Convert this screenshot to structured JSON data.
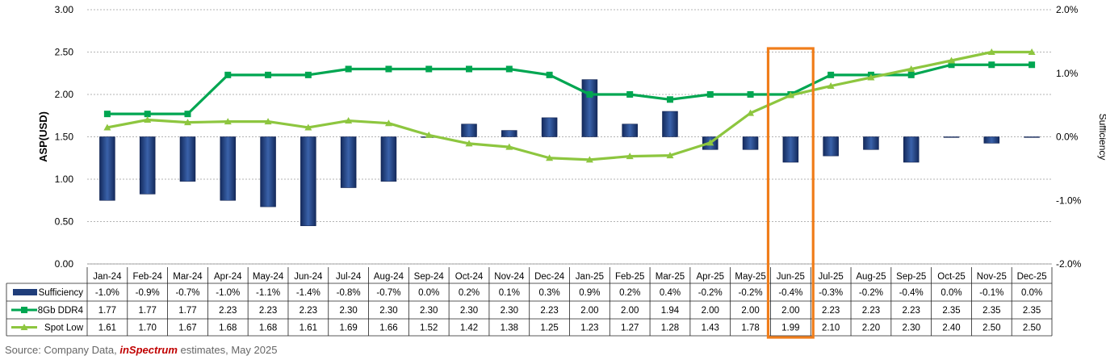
{
  "chart_data": {
    "type": "bar+line",
    "categories": [
      "Jan-24",
      "Feb-24",
      "Mar-24",
      "Apr-24",
      "May-24",
      "Jun-24",
      "Jul-24",
      "Aug-24",
      "Sep-24",
      "Oct-24",
      "Nov-24",
      "Dec-24",
      "Jan-25",
      "Feb-25",
      "Mar-25",
      "Apr-25",
      "May-25",
      "Jun-25",
      "Jul-25",
      "Aug-25",
      "Sep-25",
      "Oct-25",
      "Nov-25",
      "Dec-25"
    ],
    "ylabel": "ASP(USD)",
    "ylim": [
      0,
      3
    ],
    "yticks": [
      "0.00",
      "0.50",
      "1.00",
      "1.50",
      "2.00",
      "2.50",
      "3.00"
    ],
    "y2label": "Sufficiency",
    "y2lim": [
      -2,
      2
    ],
    "y2ticks": [
      "-2.0%",
      "-1.0%",
      "0.0%",
      "1.0%",
      "2.0%"
    ],
    "grid": true,
    "highlight_category": "Jun-25",
    "series": [
      {
        "name": "Sufficiency",
        "kind": "bar",
        "axis": "right",
        "color": "#1f3d7a",
        "values": [
          -1.0,
          -0.9,
          -0.7,
          -1.0,
          -1.1,
          -1.4,
          -0.8,
          -0.7,
          0.0,
          0.2,
          0.1,
          0.3,
          0.9,
          0.2,
          0.4,
          -0.2,
          -0.2,
          -0.4,
          -0.3,
          -0.2,
          -0.4,
          0.0,
          -0.1,
          0.0
        ],
        "labels": [
          "-1.0%",
          "-0.9%",
          "-0.7%",
          "-1.0%",
          "-1.1%",
          "-1.4%",
          "-0.8%",
          "-0.7%",
          "0.0%",
          "0.2%",
          "0.1%",
          "0.3%",
          "0.9%",
          "0.2%",
          "0.4%",
          "-0.2%",
          "-0.2%",
          "-0.4%",
          "-0.3%",
          "-0.2%",
          "-0.4%",
          "0.0%",
          "-0.1%",
          "0.0%"
        ]
      },
      {
        "name": "8Gb DDR4",
        "kind": "line",
        "axis": "left",
        "color": "#00a651",
        "values": [
          1.77,
          1.77,
          1.77,
          2.23,
          2.23,
          2.23,
          2.3,
          2.3,
          2.3,
          2.3,
          2.3,
          2.23,
          2.0,
          2.0,
          1.94,
          2.0,
          2.0,
          2.0,
          2.23,
          2.23,
          2.23,
          2.35,
          2.35,
          2.35
        ],
        "labels": [
          "1.77",
          "1.77",
          "1.77",
          "2.23",
          "2.23",
          "2.23",
          "2.30",
          "2.30",
          "2.30",
          "2.30",
          "2.30",
          "2.23",
          "2.00",
          "2.00",
          "1.94",
          "2.00",
          "2.00",
          "2.00",
          "2.23",
          "2.23",
          "2.23",
          "2.35",
          "2.35",
          "2.35"
        ]
      },
      {
        "name": "Spot Low",
        "kind": "line",
        "axis": "left",
        "color": "#8dc63f",
        "values": [
          1.61,
          1.7,
          1.67,
          1.68,
          1.68,
          1.61,
          1.69,
          1.66,
          1.52,
          1.42,
          1.38,
          1.25,
          1.23,
          1.27,
          1.28,
          1.43,
          1.78,
          1.99,
          2.1,
          2.2,
          2.3,
          2.4,
          2.5,
          2.5
        ],
        "labels": [
          "1.61",
          "1.70",
          "1.67",
          "1.68",
          "1.68",
          "1.61",
          "1.69",
          "1.66",
          "1.52",
          "1.42",
          "1.38",
          "1.25",
          "1.23",
          "1.27",
          "1.28",
          "1.43",
          "1.78",
          "1.99",
          "2.10",
          "2.20",
          "2.30",
          "2.40",
          "2.50",
          "2.50"
        ]
      }
    ],
    "highlight_color": "#f07d1a"
  },
  "source": {
    "prefix": "Source: Company Data, ",
    "brand": "inSpectrum",
    "suffix": " estimates, May 2025"
  }
}
